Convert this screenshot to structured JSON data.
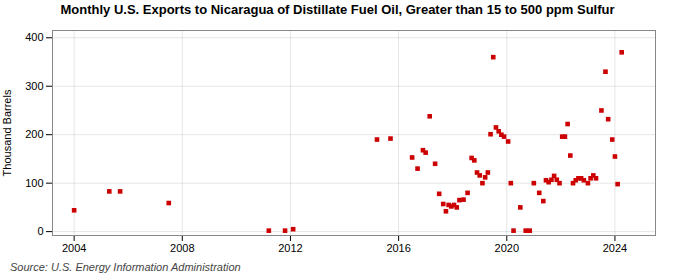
{
  "chart_data": {
    "type": "scatter",
    "title": "Monthly U.S. Exports to Nicaragua of Distillate Fuel Oil, Greater than 15 to 500 ppm Sulfur",
    "ylabel": "Thousand Barrels",
    "source": "Source: U.S. Energy Information Administration",
    "color": "#cc0000",
    "marker": "square",
    "grid": true,
    "xlim": [
      2003.2,
      2025.5
    ],
    "ylim": [
      -8,
      415
    ],
    "xticks": [
      2004,
      2008,
      2012,
      2016,
      2020,
      2024
    ],
    "yticks": [
      0,
      100,
      200,
      300,
      400
    ],
    "x": [
      2004.0,
      2005.3,
      2005.7,
      2007.5,
      2011.2,
      2011.8,
      2012.1,
      2015.2,
      2015.7,
      2016.5,
      2016.7,
      2016.9,
      2017.0,
      2017.15,
      2017.35,
      2017.5,
      2017.65,
      2017.75,
      2017.85,
      2017.95,
      2018.05,
      2018.15,
      2018.25,
      2018.4,
      2018.55,
      2018.7,
      2018.8,
      2018.9,
      2019.0,
      2019.1,
      2019.2,
      2019.3,
      2019.4,
      2019.5,
      2019.6,
      2019.7,
      2019.8,
      2019.9,
      2020.05,
      2020.15,
      2020.25,
      2020.5,
      2020.7,
      2020.85,
      2021.0,
      2021.2,
      2021.35,
      2021.45,
      2021.55,
      2021.65,
      2021.75,
      2021.85,
      2021.95,
      2022.05,
      2022.15,
      2022.25,
      2022.35,
      2022.45,
      2022.55,
      2022.65,
      2022.75,
      2022.85,
      2023.0,
      2023.1,
      2023.2,
      2023.3,
      2023.5,
      2023.65,
      2023.75,
      2023.9,
      2024.0,
      2024.1,
      2024.25
    ],
    "values": [
      44,
      83,
      83,
      59,
      2,
      2,
      5,
      190,
      192,
      153,
      130,
      168,
      163,
      238,
      140,
      78,
      57,
      42,
      55,
      52,
      55,
      50,
      65,
      66,
      80,
      152,
      147,
      122,
      116,
      100,
      112,
      122,
      201,
      360,
      215,
      207,
      200,
      196,
      186,
      100,
      2,
      50,
      2,
      2,
      100,
      80,
      63,
      106,
      102,
      107,
      115,
      107,
      100,
      196,
      196,
      222,
      157,
      100,
      106,
      110,
      110,
      106,
      100,
      110,
      116,
      110,
      250,
      330,
      232,
      190,
      155,
      98,
      370
    ]
  }
}
